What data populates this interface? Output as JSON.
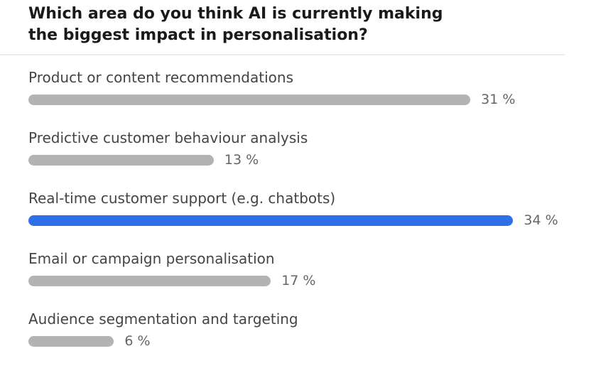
{
  "chart_data": {
    "type": "bar",
    "orientation": "horizontal",
    "title": "Which area do you think AI is currently making the biggest impact in personalisation?",
    "categories": [
      "Product or content recommendations",
      "Predictive customer behaviour analysis",
      "Real-time customer support (e.g. chatbots)",
      "Email or campaign personalisation",
      "Audience segmentation and targeting"
    ],
    "values": [
      31,
      13,
      34,
      17,
      6
    ],
    "value_labels": [
      "31 %",
      "13 %",
      "34 %",
      "17 %",
      "6 %"
    ],
    "colors": [
      "#b3b3b3",
      "#b3b3b3",
      "#2f6fe8",
      "#b3b3b3",
      "#b3b3b3"
    ]
  }
}
